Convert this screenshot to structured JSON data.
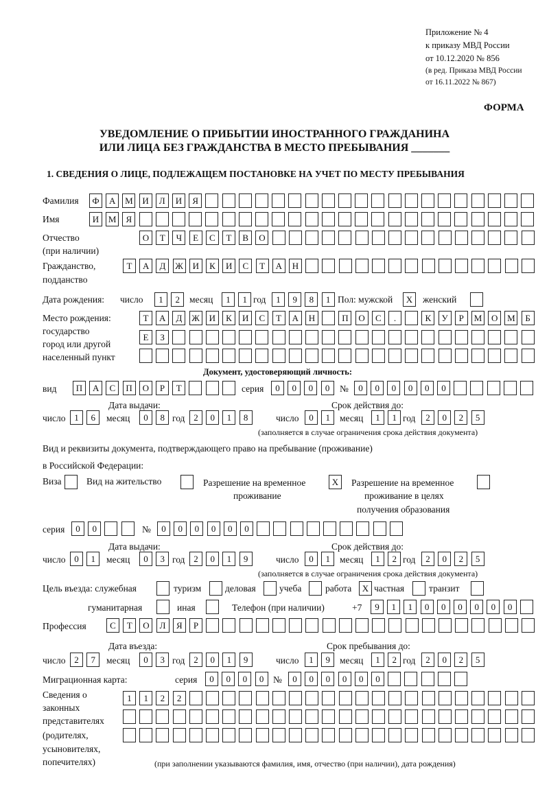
{
  "header": {
    "line1": "Приложение № 4",
    "line2": "к приказу МВД России",
    "line3": "от 10.12.2020 № 856",
    "line4": "(в ред. Приказа МВД России",
    "line5": "от 16.11.2022 № 867)",
    "form_label": "ФОРМА"
  },
  "title": {
    "line1": "УВЕДОМЛЕНИЕ О ПРИБЫТИИ ИНОСТРАННОГО ГРАЖДАНИНА",
    "line2": "ИЛИ ЛИЦА БЕЗ ГРАЖДАНСТВА В МЕСТО ПРЕБЫВАНИЯ _______"
  },
  "section1": {
    "heading": "1. СВЕДЕНИЯ О ЛИЦЕ, ПОДЛЕЖАЩЕМ ПОСТАНОВКЕ НА УЧЕТ ПО МЕСТУ ПРЕБЫВАНИЯ"
  },
  "common": {
    "day": "число",
    "month": "месяц",
    "year": "год",
    "series": "серия",
    "number": "№",
    "validity_note": "(заполняется в случае ограничения срока действия документа)",
    "issue_date": "Дата выдачи:",
    "valid_until": "Срок действия до:"
  },
  "person": {
    "surname_label": "Фамилия",
    "surname": "ФАМИЛИЯ",
    "name_label": "Имя",
    "name": "ИМЯ",
    "patronymic_label1": "Отчество",
    "patronymic_label2": "(при наличии)",
    "patronymic": "ОТЧЕСТВО",
    "citizenship_label1": "Гражданство,",
    "citizenship_label2": "подданство",
    "citizenship": "ТАДЖИКИСТАН",
    "birth_date_label": "Дата рождения:",
    "birth_day": "12",
    "birth_month": "11",
    "birth_year": "1981",
    "sex_label": "Пол: мужской",
    "sex_female_label": "женский",
    "sex_male_checked": true,
    "sex_female_checked": false,
    "birthplace_label1": "Место рождения:",
    "birthplace_label2": "государство",
    "birthplace_label3": "город или другой",
    "birthplace_label4": "населенный пункт",
    "birthplace_row1": "ТАДЖИКИСТАН ПОС. КУРМОМБ",
    "birthplace_row2": "ЕЗ",
    "birthplace_row3": ""
  },
  "id_document": {
    "heading": "Документ, удостоверяющий личность:",
    "type_label": "вид",
    "type": "ПАСПОРТ",
    "series": "0000",
    "number": "000000",
    "issue_day": "16",
    "issue_month": "08",
    "issue_year": "2018",
    "valid_day": "01",
    "valid_month": "11",
    "valid_year": "2025"
  },
  "stay_document": {
    "heading1": "Вид и реквизиты документа, подтверждающего право на пребывание (проживание)",
    "heading2": "в Российской Федерации:",
    "visa_label": "Виза",
    "visa_checked": false,
    "residence_label": "Вид на жительство",
    "residence_checked": false,
    "temp_label1": "Разрешение на временное",
    "temp_label2": "проживание",
    "temp_checked": true,
    "edu_label1": "Разрешение на временное",
    "edu_label2": "проживание в целях",
    "edu_label3": "получения образования",
    "edu_checked": false,
    "series": "00",
    "number": "000000",
    "issue_day": "01",
    "issue_month": "03",
    "issue_year": "2019",
    "valid_day": "01",
    "valid_month": "12",
    "valid_year": "2025"
  },
  "purpose": {
    "label": "Цель въезда: служебная",
    "options": [
      {
        "label": "",
        "checked": false
      },
      {
        "label": "туризм",
        "checked": false
      },
      {
        "label": "деловая",
        "checked": false
      },
      {
        "label": "учеба",
        "checked": false
      },
      {
        "label": "работа",
        "checked": true
      },
      {
        "label": "частная",
        "checked": false
      },
      {
        "label": "транзит",
        "checked": false
      },
      {
        "label": "гуманитарная",
        "checked": false
      },
      {
        "label": "иная",
        "checked": false
      }
    ]
  },
  "phone": {
    "label": "Телефон (при наличии)",
    "prefix": "+7",
    "value": "911000000"
  },
  "profession": {
    "label": "Профессия",
    "value": "СТОЛЯР"
  },
  "entry": {
    "entry_label": "Дата въезда:",
    "stay_label": "Срок пребывания до:",
    "entry_day": "27",
    "entry_month": "03",
    "entry_year": "2019",
    "stay_day": "19",
    "stay_month": "12",
    "stay_year": "2025"
  },
  "migration_card": {
    "label": "Миграционная карта:",
    "series": "0000",
    "number": "000000"
  },
  "representatives": {
    "label": [
      "Сведения о",
      "законных",
      "представителях",
      "(родителях,",
      "усыновителях,",
      "попечителях)"
    ],
    "row1": "1122",
    "row2": "",
    "row3": "",
    "note": "(при заполнении указываются фамилия, имя, отчество (при наличии), дата рождения)"
  }
}
